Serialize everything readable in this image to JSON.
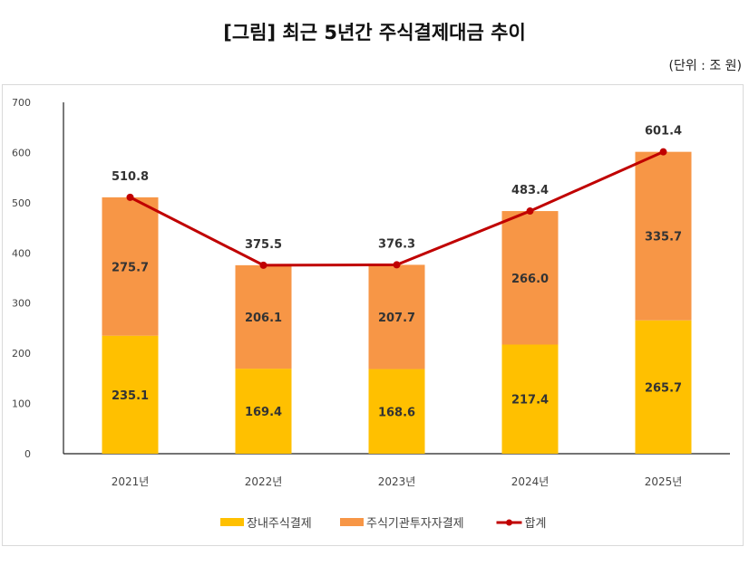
{
  "chart_data": {
    "type": "bar",
    "title": "[그림] 최근 5년간 주식결제대금 추이",
    "unit_label": "(단위 : 조 원)",
    "categories": [
      "2021년",
      "2022년",
      "2023년",
      "2024년",
      "2025년"
    ],
    "ylim": [
      0,
      700
    ],
    "yticks": [
      0,
      100,
      200,
      300,
      400,
      500,
      600,
      700
    ],
    "grid": false,
    "legend_position": "bottom",
    "stacked": true,
    "series": [
      {
        "name": "장내주식결제",
        "type": "bar",
        "color": "#FFC000",
        "values": [
          235.1,
          169.4,
          168.6,
          217.4,
          265.7
        ]
      },
      {
        "name": "주식기관투자자결제",
        "type": "bar",
        "color": "#F79646",
        "values": [
          275.7,
          206.1,
          207.7,
          266.0,
          335.7
        ]
      },
      {
        "name": "합계",
        "type": "line",
        "color": "#C00000",
        "values": [
          510.8,
          375.5,
          376.3,
          483.4,
          601.4
        ]
      }
    ]
  }
}
